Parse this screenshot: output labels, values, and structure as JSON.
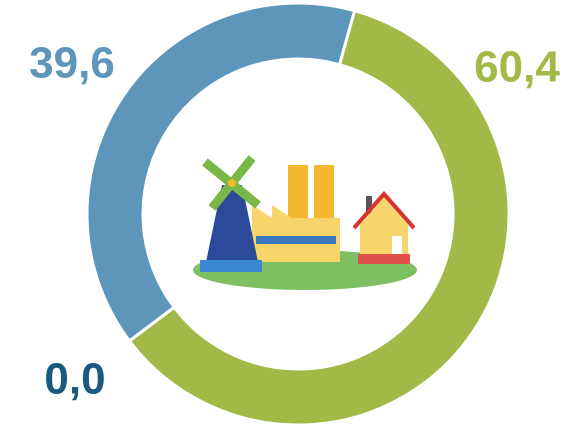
{
  "chart_data": {
    "type": "donut",
    "categories": [
      null,
      null,
      null
    ],
    "values": [
      39.6,
      60.4,
      0.0
    ],
    "value_labels": [
      "39,6",
      "60,4",
      "0,0"
    ],
    "colors": [
      "#5e95ba",
      "#a2b947",
      "#1b5a80"
    ]
  }
}
